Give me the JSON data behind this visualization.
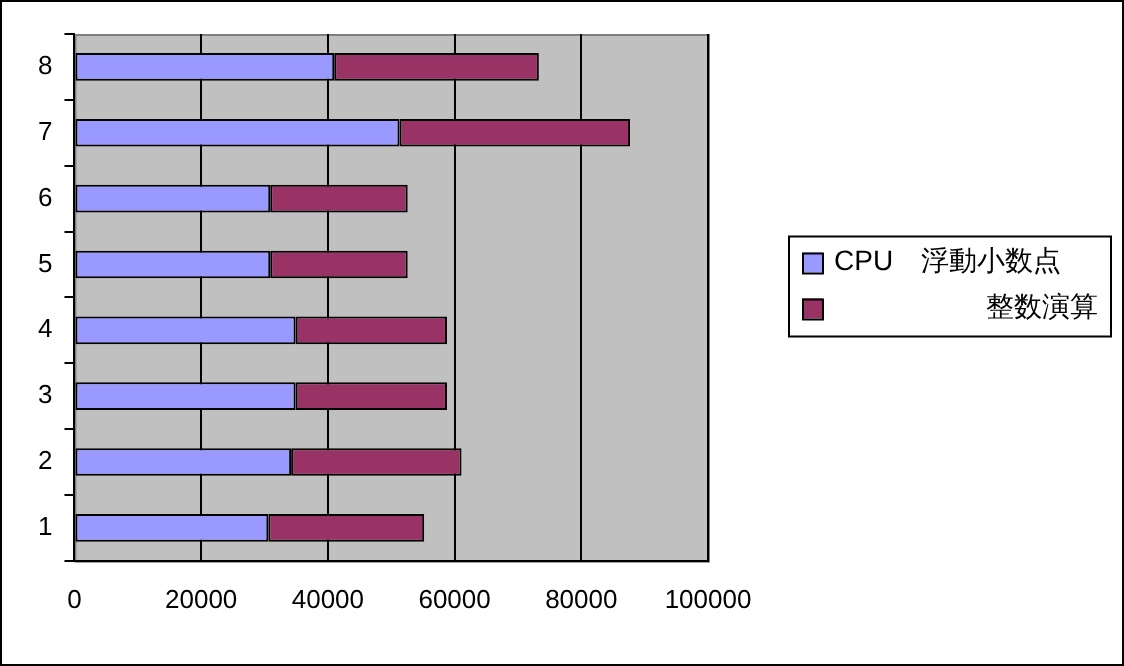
{
  "chart_data": {
    "type": "bar",
    "orientation": "horizontal",
    "stacked": true,
    "categories": [
      "8",
      "7",
      "6",
      "5",
      "4",
      "3",
      "2",
      "1"
    ],
    "series": [
      {
        "name": "CPU　浮動小数点",
        "color": "#9999ff",
        "values": [
          41000,
          51300,
          30900,
          30900,
          34900,
          34900,
          34200,
          30600
        ]
      },
      {
        "name": "整数演算",
        "color": "#993366",
        "values": [
          32300,
          36400,
          21700,
          21700,
          23900,
          23900,
          26900,
          24600
        ]
      }
    ],
    "xlim": [
      0,
      100000
    ],
    "xticks": [
      0,
      20000,
      40000,
      60000,
      80000,
      100000
    ],
    "grid": "x",
    "legend": "right"
  }
}
